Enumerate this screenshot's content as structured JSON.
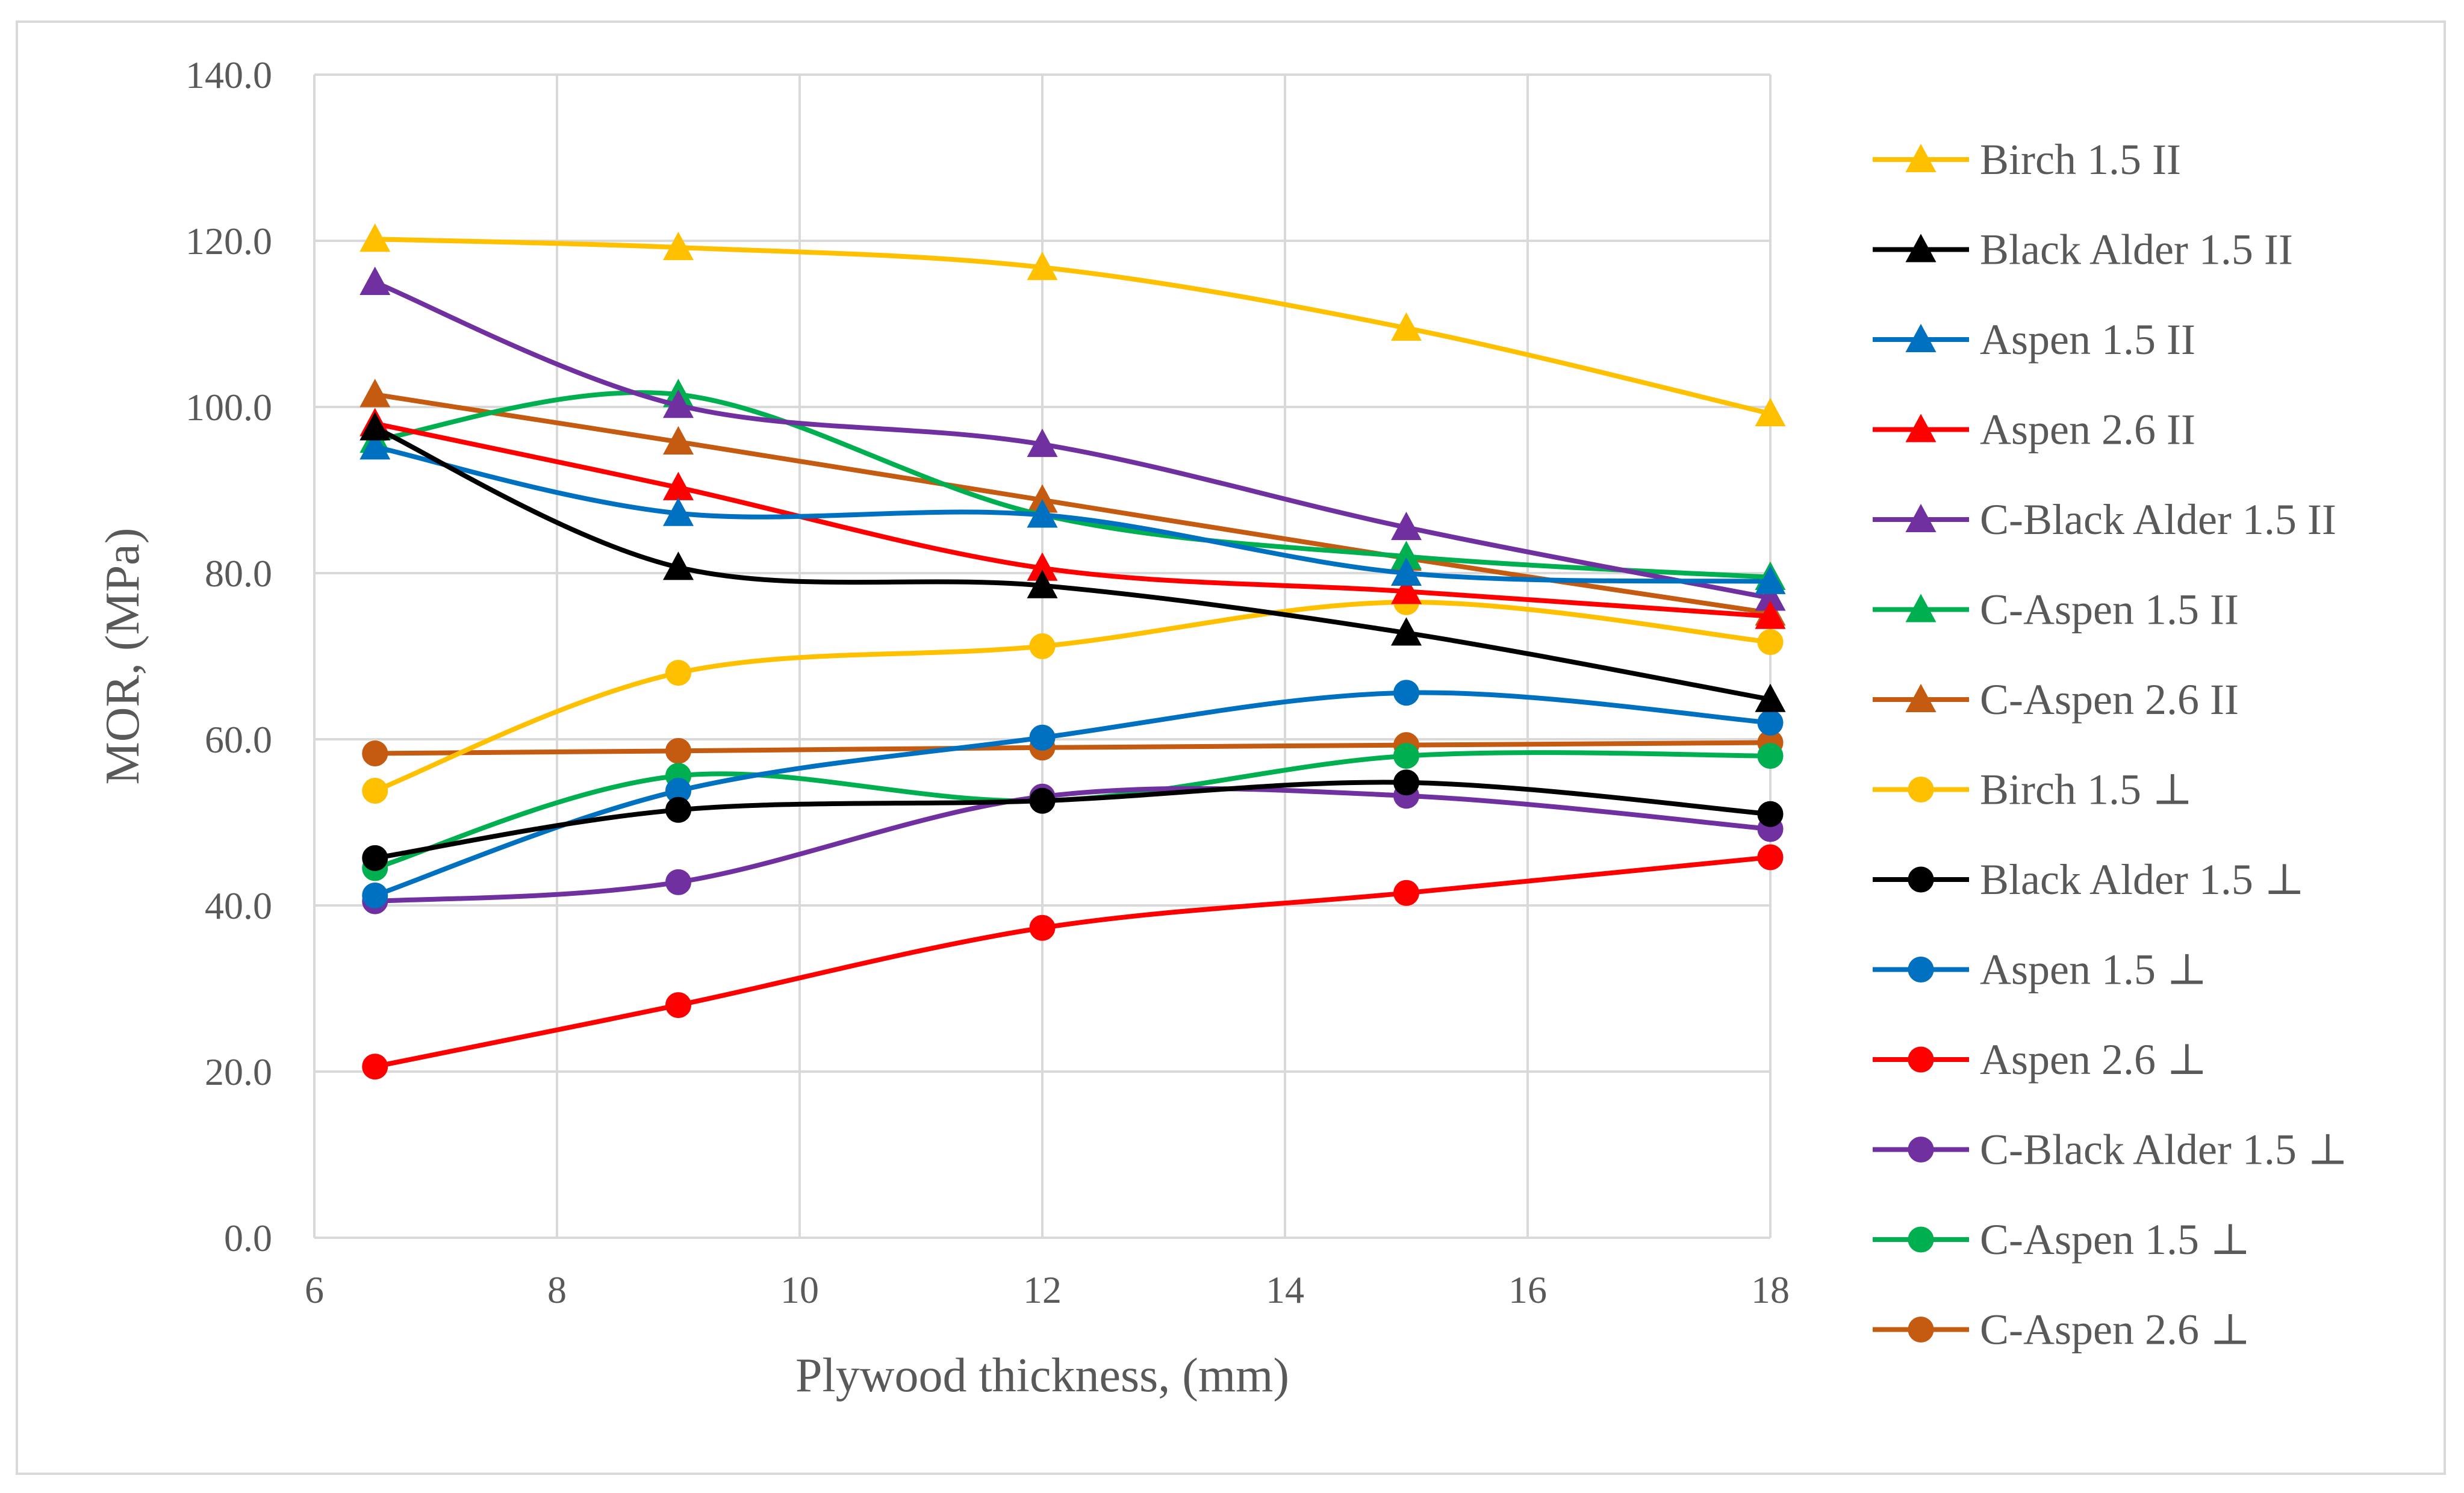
{
  "chart_data": {
    "type": "line",
    "title": "",
    "xlabel": "Plywood thickness, (mm)",
    "ylabel": "MOR, (MPa)",
    "xlim": [
      6,
      18
    ],
    "ylim": [
      0,
      140
    ],
    "x_ticks": [
      "6",
      "8",
      "10",
      "12",
      "14",
      "16",
      "18"
    ],
    "x_tick_values": [
      6,
      8,
      10,
      12,
      14,
      16,
      18
    ],
    "y_ticks": [
      "0.0",
      "20.0",
      "40.0",
      "60.0",
      "80.0",
      "100.0",
      "120.0",
      "140.0"
    ],
    "y_tick_values": [
      0,
      20,
      40,
      60,
      80,
      100,
      120,
      140
    ],
    "grid": true,
    "smooth": true,
    "legend_position": "right",
    "x": [
      6.5,
      9,
      12,
      15,
      18
    ],
    "series": [
      {
        "name": "Birch 1.5   II",
        "color": "#FFC000",
        "marker": "triangle",
        "values": [
          120.2,
          119.2,
          116.8,
          109.5,
          99.2
        ]
      },
      {
        "name": "Black Alder 1.5   II",
        "color": "#000000",
        "marker": "triangle",
        "values": [
          97.5,
          80.7,
          78.5,
          72.8,
          64.8
        ]
      },
      {
        "name": "Aspen 1.5   II",
        "color": "#0070C0",
        "marker": "triangle",
        "values": [
          95.2,
          87.2,
          87.0,
          80.0,
          79.0
        ]
      },
      {
        "name": "Aspen 2.6   II",
        "color": "#FF0000",
        "marker": "triangle",
        "values": [
          98.0,
          90.3,
          80.6,
          77.8,
          74.8
        ]
      },
      {
        "name": "C-Black Alder 1.5   II",
        "color": "#7030A0",
        "marker": "triangle",
        "values": [
          115.0,
          100.2,
          95.5,
          85.5,
          77.0
        ]
      },
      {
        "name": "C-Aspen 1.5   II",
        "color": "#00B050",
        "marker": "triangle",
        "values": [
          96.0,
          101.5,
          87.0,
          82.0,
          79.5
        ]
      },
      {
        "name": "C-Aspen 2.6   II",
        "color": "#C55A11",
        "marker": "triangle",
        "values": [
          101.5,
          95.8,
          88.8,
          81.8,
          75.2
        ]
      },
      {
        "name": "Birch 1.5  ⊥",
        "color": "#FFC000",
        "marker": "circle",
        "values": [
          53.8,
          68.0,
          71.2,
          76.5,
          71.7
        ]
      },
      {
        "name": "Black Alder 1.5  ⊥",
        "color": "#000000",
        "marker": "circle",
        "values": [
          45.7,
          51.5,
          52.6,
          54.8,
          51.0
        ]
      },
      {
        "name": "Aspen 1.5  ⊥",
        "color": "#0070C0",
        "marker": "circle",
        "values": [
          41.2,
          53.8,
          60.2,
          65.6,
          62.0
        ]
      },
      {
        "name": "Aspen 2.6  ⊥",
        "color": "#FF0000",
        "marker": "circle",
        "values": [
          20.6,
          28.0,
          37.3,
          41.5,
          45.8
        ]
      },
      {
        "name": "C-Black Alder 1.5  ⊥",
        "color": "#7030A0",
        "marker": "circle",
        "values": [
          40.5,
          42.8,
          53.1,
          53.2,
          49.2
        ]
      },
      {
        "name": "C-Aspen 1.5  ⊥",
        "color": "#00B050",
        "marker": "circle",
        "values": [
          44.5,
          55.6,
          52.6,
          58.0,
          58.0
        ]
      },
      {
        "name": "C-Aspen 2.6  ⊥",
        "color": "#C55A11",
        "marker": "circle",
        "values": [
          58.3,
          58.6,
          59.0,
          59.3,
          59.6
        ]
      }
    ]
  }
}
